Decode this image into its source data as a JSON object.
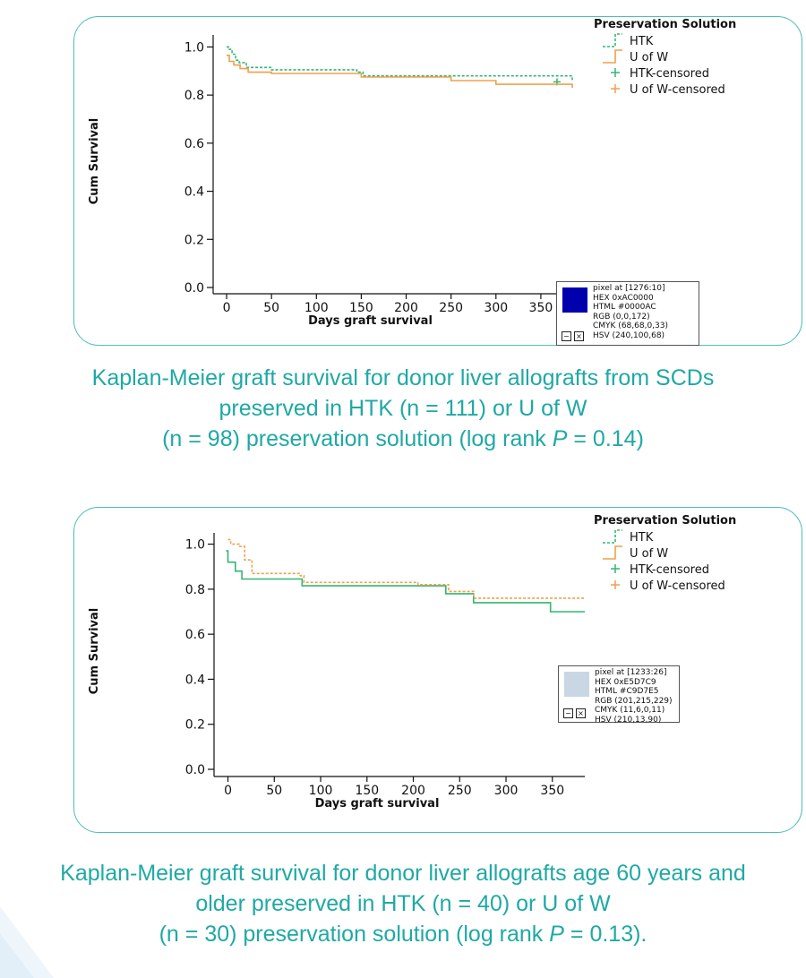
{
  "chart_data": [
    {
      "type": "line",
      "subtype": "kaplan-meier-step",
      "xlabel": "Days graft survival",
      "ylabel": "Cum Survival",
      "xlim": [
        -15,
        385
      ],
      "ylim": [
        0,
        1.05
      ],
      "xticks": [
        "0",
        "50",
        "100",
        "150",
        "200",
        "250",
        "300",
        "350"
      ],
      "yticks": [
        "0.0",
        "0.2",
        "0.4",
        "0.6",
        "0.8",
        "1.0"
      ],
      "legend_title": "Preservation Solution",
      "legend": [
        "HTK",
        "U of W",
        "HTK-censored",
        "U of W-censored"
      ],
      "grid": false,
      "series": [
        {
          "name": "HTK",
          "color": "#33b574",
          "dashed": true,
          "x": [
            0,
            3,
            6,
            10,
            14,
            22,
            50,
            145,
            152,
            385
          ],
          "y": [
            1.0,
            0.99,
            0.97,
            0.945,
            0.935,
            0.915,
            0.905,
            0.895,
            0.88,
            0.855
          ],
          "censored": [
            [
              368,
              0.855
            ]
          ]
        },
        {
          "name": "U of W",
          "color": "#f0a04b",
          "dashed": false,
          "x": [
            0,
            3,
            8,
            15,
            24,
            50,
            150,
            250,
            300,
            385
          ],
          "y": [
            0.965,
            0.94,
            0.925,
            0.91,
            0.895,
            0.89,
            0.875,
            0.86,
            0.845,
            0.83
          ],
          "censored": []
        }
      ],
      "pixel_tooltip": {
        "color": "#0000AC",
        "lines": [
          "pixel at [1276:10]",
          "HEX 0xAC0000",
          "HTML #0000AC",
          "RGB (0,0,172)",
          "CMYK (68,68,0,33)",
          "HSV (240,100,68)"
        ]
      }
    },
    {
      "type": "line",
      "subtype": "kaplan-meier-step",
      "xlabel": "Days graft survival",
      "ylabel": "Cum Survival",
      "xlim": [
        -15,
        385
      ],
      "ylim": [
        0,
        1.05
      ],
      "xticks": [
        "0",
        "50",
        "100",
        "150",
        "200",
        "250",
        "300",
        "350"
      ],
      "yticks": [
        "0.0",
        "0.2",
        "0.4",
        "0.6",
        "0.8",
        "1.0"
      ],
      "legend_title": "Preservation Solution",
      "legend": [
        "HTK",
        "U of W",
        "HTK-censored",
        "U of W-censored"
      ],
      "grid": false,
      "series": [
        {
          "name": "HTK",
          "color": "#33b574",
          "dashed": false,
          "x": [
            -2,
            0,
            8,
            15,
            80,
            235,
            265,
            348,
            385
          ],
          "y": [
            0.97,
            0.92,
            0.88,
            0.845,
            0.815,
            0.78,
            0.74,
            0.7,
            0.7
          ],
          "censored": []
        },
        {
          "name": "U of W",
          "color": "#f0a04b",
          "dashed": true,
          "x": [
            0,
            3,
            12,
            18,
            26,
            78,
            82,
            200,
            205,
            238,
            265,
            385
          ],
          "y": [
            1.02,
            1.0,
            0.99,
            0.93,
            0.87,
            0.86,
            0.83,
            0.83,
            0.82,
            0.79,
            0.76,
            0.76
          ],
          "censored": []
        }
      ],
      "pixel_tooltip": {
        "color": "#C9D7E5",
        "lines": [
          "pixel at [1233:26]",
          "HEX 0xE5D7C9",
          "HTML #C9D7E5",
          "RGB (201,215,229)",
          "CMYK (11,6,0,11)",
          "HSV (210,13,90)"
        ]
      }
    }
  ],
  "captions": [
    {
      "line1": "Kaplan-Meier graft survival for donor liver allografts from SCDs",
      "line2": "preserved in HTK (n = 111) or U of W",
      "line3_pre": "(n = 98) preservation solution (log rank ",
      "line3_p": "P",
      "line3_post": " = 0.14)"
    },
    {
      "line1": "Kaplan-Meier graft survival for donor liver allografts age 60 years and",
      "line2": "older preserved in HTK (n = 40) or U of W",
      "line3_pre": "(n = 30) preservation solution (log rank ",
      "line3_p": "P",
      "line3_post": " = 0.13)."
    }
  ]
}
